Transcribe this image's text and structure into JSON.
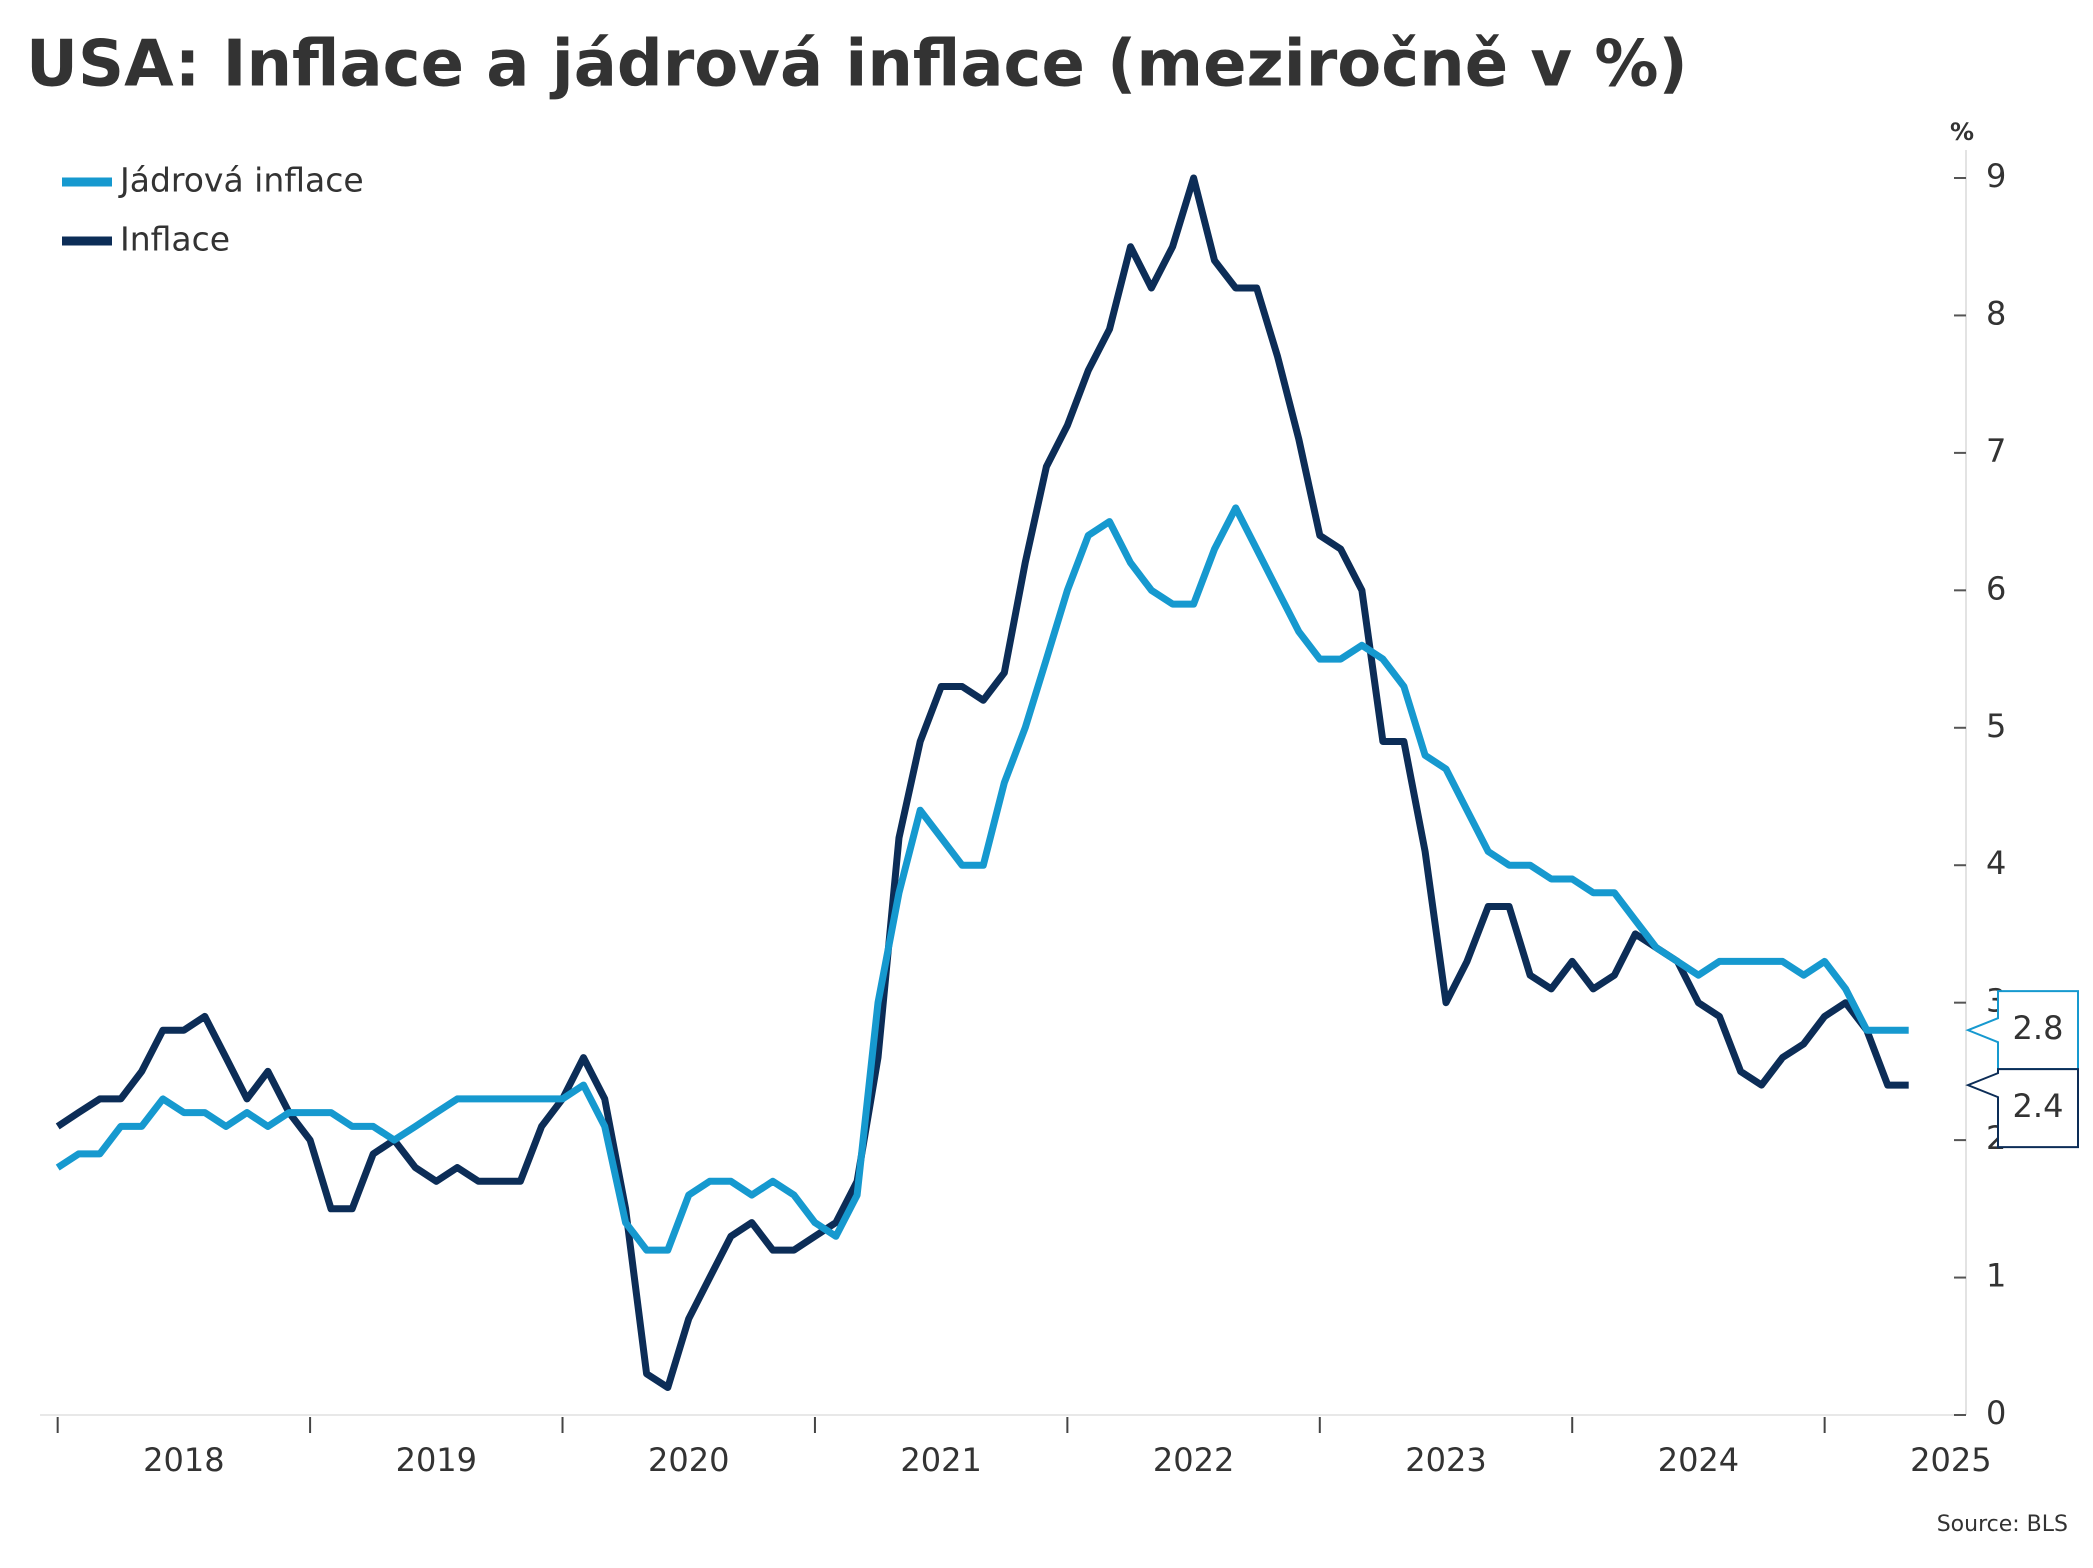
{
  "chart_data": {
    "type": "line",
    "title": "USA: Inflace a jádrová inflace (meziročně v %)",
    "y_unit": "%",
    "source": "Source: BLS",
    "x": [
      2018,
      2018.083,
      2018.167,
      2018.25,
      2018.333,
      2018.417,
      2018.5,
      2018.583,
      2018.667,
      2018.75,
      2018.833,
      2018.917,
      2019,
      2019.083,
      2019.167,
      2019.25,
      2019.333,
      2019.417,
      2019.5,
      2019.583,
      2019.667,
      2019.75,
      2019.833,
      2019.917,
      2020,
      2020.083,
      2020.167,
      2020.25,
      2020.333,
      2020.417,
      2020.5,
      2020.583,
      2020.667,
      2020.75,
      2020.833,
      2020.917,
      2021,
      2021.083,
      2021.167,
      2021.25,
      2021.333,
      2021.417,
      2021.5,
      2021.583,
      2021.667,
      2021.75,
      2021.833,
      2021.917,
      2022,
      2022.083,
      2022.167,
      2022.25,
      2022.333,
      2022.417,
      2022.5,
      2022.583,
      2022.667,
      2022.75,
      2022.833,
      2022.917,
      2023,
      2023.083,
      2023.167,
      2023.25,
      2023.333,
      2023.417,
      2023.5,
      2023.583,
      2023.667,
      2023.75,
      2023.833,
      2023.917,
      2024,
      2024.083,
      2024.167,
      2024.25,
      2024.333,
      2024.417,
      2024.5,
      2024.583,
      2024.667,
      2024.75,
      2024.833,
      2024.917,
      2025,
      2025.083,
      2025.167,
      2025.25,
      2025.333
    ],
    "series": [
      {
        "name": "Jádrová inflace",
        "color": "#1699cf",
        "values": [
          1.8,
          1.9,
          1.9,
          2.1,
          2.1,
          2.3,
          2.2,
          2.2,
          2.1,
          2.2,
          2.1,
          2.2,
          2.2,
          2.2,
          2.1,
          2.1,
          2.0,
          2.1,
          2.2,
          2.3,
          2.3,
          2.3,
          2.3,
          2.3,
          2.3,
          2.4,
          2.1,
          1.4,
          1.2,
          1.2,
          1.6,
          1.7,
          1.7,
          1.6,
          1.7,
          1.6,
          1.4,
          1.3,
          1.6,
          3.0,
          3.8,
          4.4,
          4.2,
          4.0,
          4.0,
          4.6,
          5.0,
          5.5,
          6.0,
          6.4,
          6.5,
          6.2,
          6.0,
          5.9,
          5.9,
          6.3,
          6.6,
          6.3,
          6.0,
          5.7,
          5.5,
          5.5,
          5.6,
          5.5,
          5.3,
          4.8,
          4.7,
          4.4,
          4.1,
          4.0,
          4.0,
          3.9,
          3.9,
          3.8,
          3.8,
          3.6,
          3.4,
          3.3,
          3.2,
          3.3,
          3.3,
          3.3,
          3.3,
          3.2,
          3.3,
          3.1,
          2.8,
          2.8,
          2.8
        ]
      },
      {
        "name": "Inflace",
        "color": "#0c2d57",
        "values": [
          2.1,
          2.2,
          2.3,
          2.3,
          2.5,
          2.8,
          2.8,
          2.9,
          2.6,
          2.3,
          2.5,
          2.2,
          2.0,
          1.5,
          1.5,
          1.9,
          2.0,
          1.8,
          1.7,
          1.8,
          1.7,
          1.7,
          1.7,
          2.1,
          2.3,
          2.6,
          2.3,
          1.5,
          0.3,
          0.2,
          0.7,
          1.0,
          1.3,
          1.4,
          1.2,
          1.2,
          1.3,
          1.4,
          1.7,
          2.6,
          4.2,
          4.9,
          5.3,
          5.3,
          5.2,
          5.4,
          6.2,
          6.9,
          7.2,
          7.6,
          7.9,
          8.5,
          8.2,
          8.5,
          9.0,
          8.4,
          8.2,
          8.2,
          7.7,
          7.1,
          6.4,
          6.3,
          6.0,
          4.9,
          4.9,
          4.1,
          3.0,
          3.3,
          3.7,
          3.7,
          3.2,
          3.1,
          3.3,
          3.1,
          3.2,
          3.5,
          3.4,
          3.3,
          3.0,
          2.9,
          2.5,
          2.4,
          2.6,
          2.7,
          2.9,
          3.0,
          2.8,
          2.4,
          2.4
        ]
      }
    ],
    "xlim": [
      2017.93,
      2025.56
    ],
    "xticks": [
      2018,
      2019,
      2020,
      2021,
      2022,
      2023,
      2024,
      2025
    ],
    "ylim": [
      0,
      9
    ],
    "yticks": [
      0,
      1,
      2,
      3,
      4,
      5,
      6,
      7,
      8,
      9
    ],
    "legend": "top-left"
  }
}
